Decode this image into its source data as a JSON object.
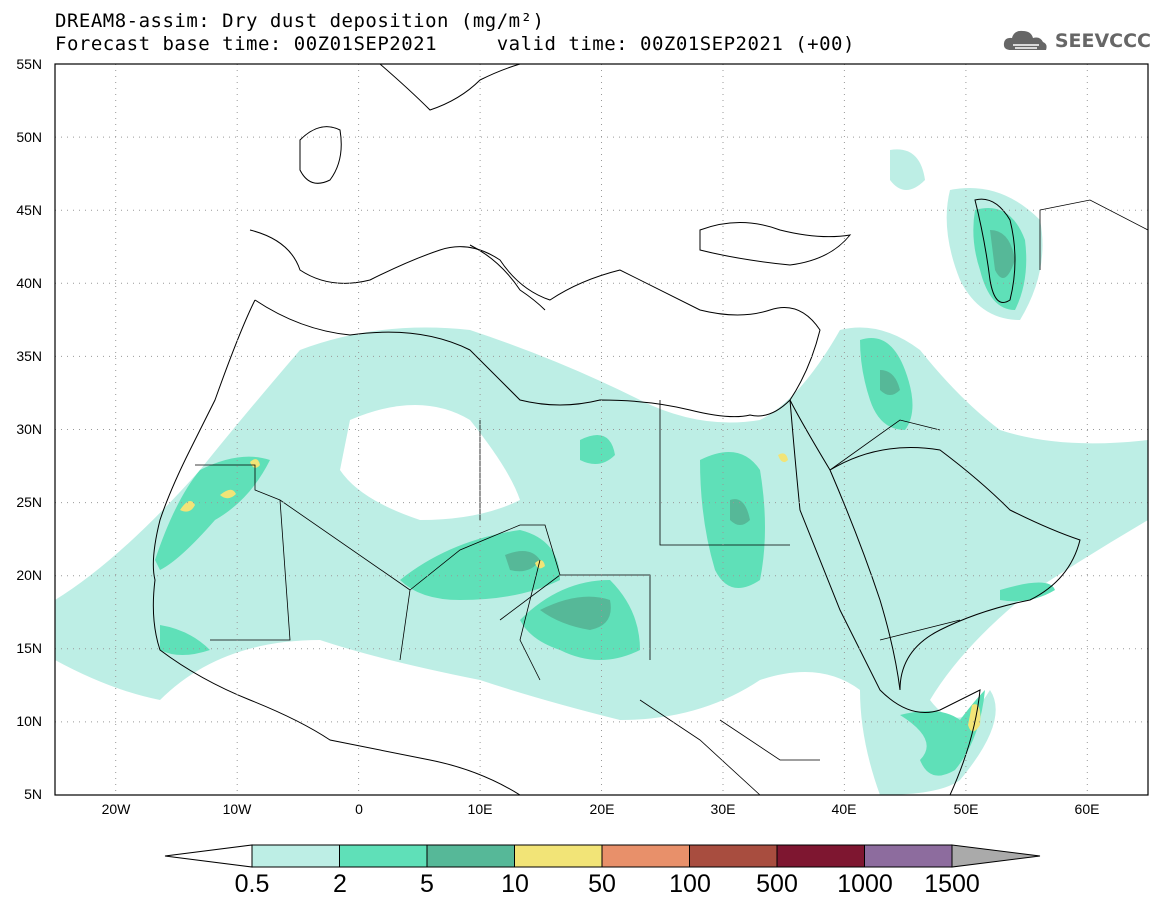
{
  "title": {
    "line1": "DREAM8-assim: Dry dust deposition (mg/m²)",
    "line2": "Forecast base time: 00Z01SEP2021     valid time: 00Z01SEP2021 (+00)"
  },
  "logo": {
    "text": "SEEVCCC",
    "icon": "cloud-logo-icon"
  },
  "map": {
    "type": "dust-deposition-map",
    "lon_range": [
      -25,
      65
    ],
    "lat_range": [
      5,
      55
    ],
    "lat_ticks": [
      "55N",
      "50N",
      "45N",
      "40N",
      "35N",
      "30N",
      "25N",
      "20N",
      "15N",
      "10N",
      "5N"
    ],
    "lon_ticks": [
      "20W",
      "10W",
      "0",
      "10E",
      "20E",
      "30E",
      "40E",
      "50E",
      "60E"
    ],
    "gridlines": "dotted"
  },
  "colorbar": {
    "labels": [
      "0.5",
      "2",
      "5",
      "10",
      "50",
      "100",
      "500",
      "1000",
      "1500"
    ],
    "colors": [
      "#bdeee5",
      "#5fe0b8",
      "#56b898",
      "#f2e477",
      "#e8906a",
      "#a84d3f",
      "#7e1630",
      "#8d6c9e"
    ],
    "under_color": "#ffffff",
    "over_color": "#aaaaaa"
  }
}
